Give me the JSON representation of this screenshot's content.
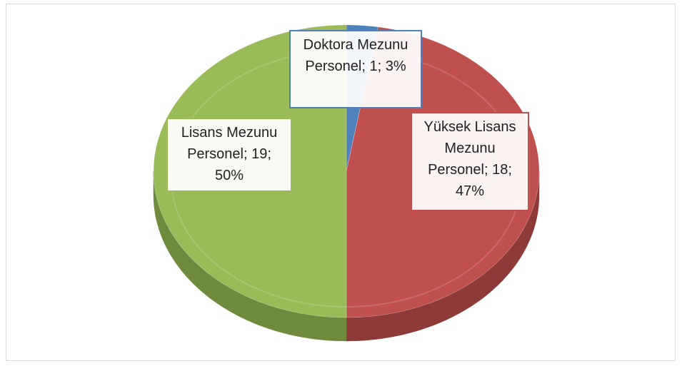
{
  "chart_data": {
    "type": "pie",
    "categories": [
      "Doktora Mezunu Personel",
      "Yüksek Lisans Mezunu Personel",
      "Lisans Mezunu Personel"
    ],
    "values": [
      1,
      18,
      19
    ],
    "value_labels": [
      "1; 3%",
      "18; 47%",
      "19; 50%"
    ],
    "label_separator": "; ",
    "colors": [
      "#4f81bd",
      "#c0504d",
      "#9bbb59"
    ],
    "side_colors": [
      "#3a6494",
      "#8e3a38",
      "#6f8a3c"
    ]
  }
}
